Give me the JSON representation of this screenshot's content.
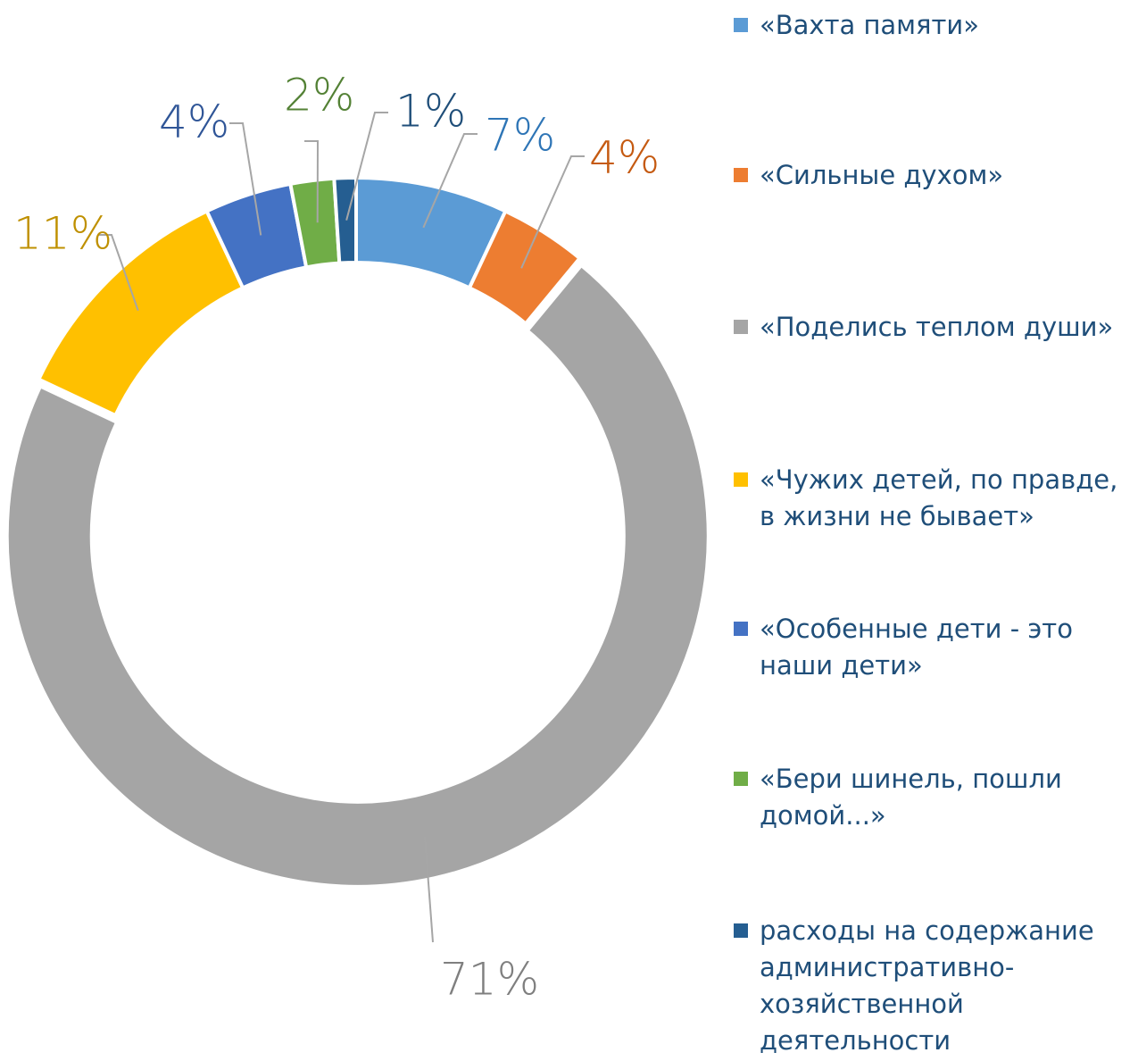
{
  "chart_data": {
    "type": "donut",
    "categories": [
      "«Вахта памяти»",
      "«Сильные духом»",
      "«Поделись теплом души»",
      "«Чужих детей, по правде, в жизни не бывает»",
      "«Особенные дети - это наши дети»",
      "«Бери шинель, пошли домой...»",
      "расходы на содержание административно-хозяйственной деятельности"
    ],
    "values": [
      7,
      4,
      71,
      11,
      4,
      2,
      1
    ],
    "value_labels": [
      "7%",
      "4%",
      "71%",
      "11%",
      "4%",
      "2%",
      "1%"
    ],
    "colors": [
      "#5b9bd5",
      "#ed7d31",
      "#a5a5a5",
      "#ffc000",
      "#4472c4",
      "#70ad47",
      "#255e91"
    ],
    "label_colors": [
      "#2e75b6",
      "#c55a11",
      "#7f7f7f",
      "#bf9000",
      "#2f5597",
      "#538135",
      "#1f4e79"
    ],
    "legend": "right"
  }
}
